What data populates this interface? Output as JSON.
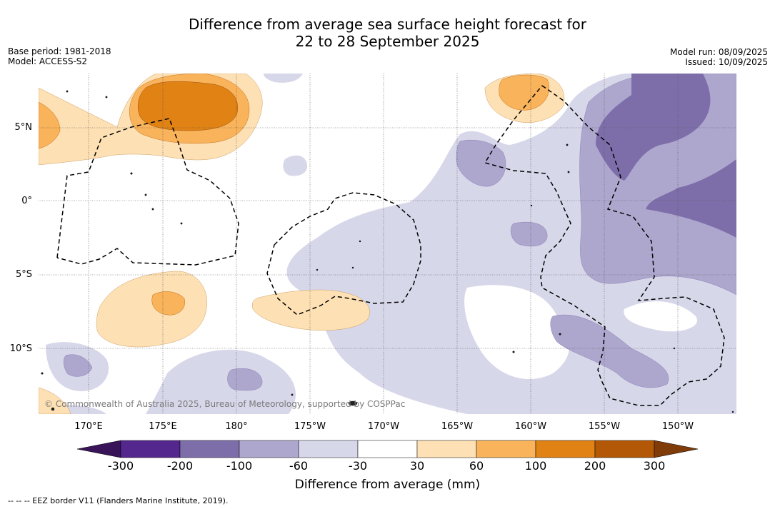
{
  "title": {
    "line1": "Difference from average sea surface height forecast for",
    "line2": "22 to 28 September 2025"
  },
  "meta": {
    "base_period": "Base period: 1981-2018",
    "model": "Model: ACCESS-S2",
    "model_run": "Model run: 08/09/2025",
    "issued": "Issued: 10/09/2025"
  },
  "axes": {
    "lat_labels": [
      "5°N",
      "0°",
      "5°S",
      "10°S"
    ],
    "lon_labels": [
      "170°E",
      "175°E",
      "180°",
      "175°W",
      "170°W",
      "165°W",
      "160°W",
      "155°W",
      "150°W"
    ]
  },
  "copyright": "© Commonwealth of Australia 2025, Bureau of Meteorology, supported by COSPPac",
  "colorbar": {
    "label": "Difference from average (mm)",
    "ticks": [
      "-300",
      "-200",
      "-100",
      "-60",
      "-30",
      "30",
      "60",
      "100",
      "200",
      "300"
    ],
    "colors": {
      "below_min": "#3a1458",
      "neg300_200": "#54278f",
      "neg200_100": "#7d6eaa",
      "neg100_60": "#ada7ce",
      "neg60_30": "#d7d7ea",
      "neutral": "#ffffff",
      "pos30_60": "#fde0b3",
      "pos60_100": "#f9b35a",
      "pos100_200": "#e08214",
      "pos200_300": "#b35806",
      "above_max": "#7f3b08"
    }
  },
  "footnote": "-- -- -- EEZ border V11 (Flanders Marine Institute, 2019)."
}
